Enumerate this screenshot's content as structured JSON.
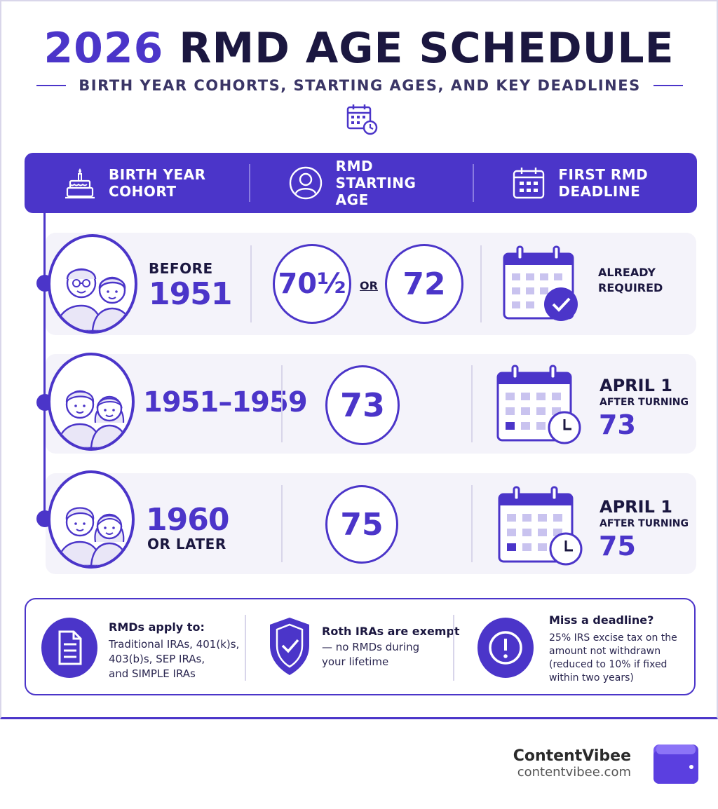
{
  "header": {
    "title_year": "2026",
    "title_rest": " RMD AGE SCHEDULE",
    "subtitle": "BIRTH YEAR COHORTS, STARTING AGES, AND KEY DEADLINES"
  },
  "columns": {
    "birth_year_line1": "BIRTH YEAR",
    "birth_year_line2": "COHORT",
    "starting_age_line1": "RMD STARTING",
    "starting_age_line2": "AGE",
    "deadline_line1": "FIRST RMD",
    "deadline_line2": "DEADLINE"
  },
  "rows": [
    {
      "cohort_prefix": "BEFORE",
      "cohort_year": "1951",
      "age_a": "70½",
      "or": "OR",
      "age_b": "72",
      "deadline_line1": "ALREADY",
      "deadline_line2": "REQUIRED"
    },
    {
      "cohort_year": "1951–1959",
      "age": "73",
      "deadline_a": "APRIL 1",
      "deadline_b": "AFTER TURNING",
      "deadline_c": "73"
    },
    {
      "cohort_year": "1960",
      "cohort_suffix": "OR LATER",
      "age": "75",
      "deadline_a": "APRIL 1",
      "deadline_b": "AFTER TURNING",
      "deadline_c": "75"
    }
  ],
  "notes": [
    {
      "icon": "document-icon",
      "title": "RMDs apply to:",
      "lines": [
        "Traditional IRAs, 401(k)s,",
        "403(b)s, SEP IRAs,",
        "and SIMPLE IRAs"
      ]
    },
    {
      "icon": "shield-check-icon",
      "title": "Roth IRAs are exempt",
      "lines": [
        "— no RMDs during",
        "your lifetime"
      ]
    },
    {
      "icon": "exclamation-icon",
      "title": "Miss a deadline?",
      "lines": [
        "25% IRS excise tax on the",
        "amount not withdrawn",
        "(reduced to 10% if fixed",
        "within two years)"
      ]
    }
  ],
  "brand": {
    "name": "ContentVibee",
    "url": "contentvibee.com"
  },
  "colors": {
    "primary": "#4b35c9",
    "dark": "#1b1740",
    "row_bg": "#f4f3fa"
  }
}
